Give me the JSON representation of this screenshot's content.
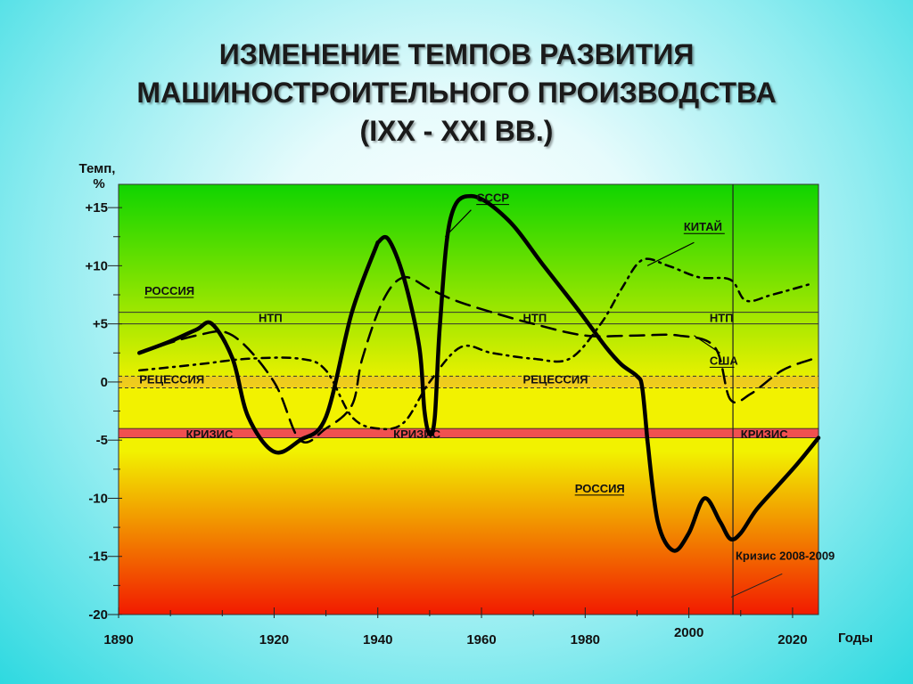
{
  "title_lines": [
    "ИЗМЕНЕНИЕ ТЕМПОВ РАЗВИТИЯ",
    "МАШИНОСТРОИТЕЛЬНОГО ПРОИЗВОДСТВА",
    "(IXX - XXI ВВ.)"
  ],
  "chart_data": {
    "type": "line",
    "ylabel": "Темп, %",
    "xlabel": "Годы",
    "xlim": [
      1890,
      2025
    ],
    "ylim": [
      -20,
      17
    ],
    "y_ticks": [
      "+15",
      "+10",
      "+5",
      "0",
      "-5",
      "-10",
      "-15",
      "-20"
    ],
    "y_tick_values": [
      15,
      10,
      5,
      0,
      -5,
      -10,
      -15,
      -20
    ],
    "x_ticks": [
      "1890",
      "1920",
      "1940",
      "1960",
      "1980",
      "2000",
      "2020"
    ],
    "x_tick_values": [
      1890,
      1920,
      1940,
      1960,
      1980,
      2000,
      2020
    ],
    "bands": [
      {
        "name": "НТП",
        "from": 5,
        "to": 6,
        "labels": [
          "НТП",
          "НТП",
          "НТП"
        ],
        "label_x": [
          1917,
          1968,
          2004
        ]
      },
      {
        "name": "РЕЦЕССИЯ",
        "from": -0.5,
        "to": 0.5,
        "labels": [
          "РЕЦЕССИЯ",
          "РЕЦЕССИЯ"
        ],
        "label_x": [
          1894,
          1968
        ]
      },
      {
        "name": "КРИЗИС",
        "from": -4.8,
        "to": -4,
        "labels": [
          "КРИЗИС",
          "КРИЗИС",
          "КРИЗИС"
        ],
        "label_x": [
          1903,
          1943,
          2010
        ]
      }
    ],
    "vline": {
      "x": 2008.5,
      "label": "Кризис 2008-2009"
    },
    "series": [
      {
        "name": "РОССИЯ",
        "style": "solid",
        "width": 4.5,
        "x": [
          1894,
          1900,
          1905,
          1908,
          1912,
          1915,
          1920,
          1925,
          1930,
          1935,
          1940
        ],
        "y": [
          2.5,
          3.5,
          4.5,
          5,
          2,
          -3,
          -6,
          -5,
          -3,
          6,
          12
        ]
      },
      {
        "name": "СССР",
        "style": "solid",
        "width": 4.5,
        "x": [
          1940,
          1942,
          1945,
          1948,
          1949,
          1950,
          1951,
          1952,
          1954,
          1958,
          1965,
          1972,
          1979,
          1984,
          1987,
          1990,
          1991,
          1992
        ],
        "y": [
          12,
          12.3,
          9,
          3,
          -2.5,
          -4.5,
          -3,
          5,
          14,
          16,
          14,
          10,
          6,
          3,
          1.5,
          0.5,
          -0.5,
          -5
        ]
      },
      {
        "name": "РОССИЯ",
        "style": "solid",
        "width": 4.5,
        "x": [
          1992,
          1994,
          1997,
          2000,
          2003,
          2006,
          2008,
          2010,
          2013,
          2017,
          2021,
          2025
        ],
        "y": [
          -5,
          -12,
          -14.5,
          -13,
          -10,
          -12,
          -13.5,
          -13,
          -11,
          -9,
          -7,
          -4.8
        ]
      },
      {
        "name": "США",
        "style": "dashed",
        "width": 2.5,
        "x": [
          1894,
          1905,
          1912,
          1920,
          1925,
          1930,
          1935,
          1937,
          1941,
          1945,
          1950,
          1955,
          1962,
          1970,
          1980,
          1990,
          1998,
          2005,
          2008,
          2012,
          2018,
          2024
        ],
        "y": [
          2.5,
          4,
          4,
          0,
          -5,
          -4,
          -2,
          2,
          7,
          9,
          8,
          7,
          6,
          5,
          4,
          4,
          4,
          3,
          -1.5,
          -1,
          1,
          2
        ]
      },
      {
        "name": "КИТАЙ",
        "style": "dashdot",
        "width": 2.5,
        "x": [
          1894,
          1905,
          1915,
          1925,
          1930,
          1935,
          1940,
          1945,
          1950,
          1956,
          1962,
          1970,
          1977,
          1983,
          1987,
          1991,
          1996,
          2002,
          2008,
          2011,
          2016,
          2024
        ],
        "y": [
          1,
          1.5,
          2,
          2,
          1,
          -3,
          -4,
          -3.5,
          0,
          3,
          2.5,
          2,
          2,
          5,
          8,
          10.5,
          10,
          9,
          8.8,
          7,
          7.5,
          8.5
        ]
      }
    ],
    "annotations": [
      {
        "text": "РОССИЯ",
        "x": 1895,
        "y": 7.5
      },
      {
        "text": "СССР",
        "x": 1959,
        "y": 15.5
      },
      {
        "text": "КИТАЙ",
        "x": 1999,
        "y": 13
      },
      {
        "text": "США",
        "x": 2004,
        "y": 1.5
      },
      {
        "text": "РОССИЯ",
        "x": 1978,
        "y": -9.5
      }
    ]
  },
  "colors": {
    "top": "#0fd400",
    "middle": "#f2f200",
    "bottom": "#f21a00",
    "band": "#f05050",
    "line": "#000000"
  }
}
